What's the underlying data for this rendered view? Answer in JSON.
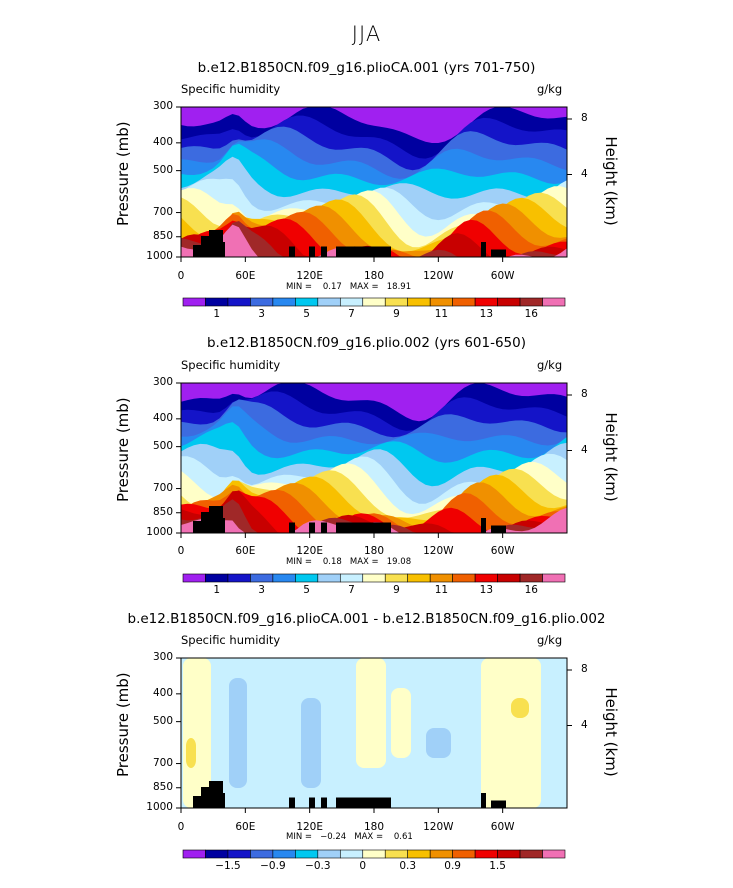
{
  "page_title": "JJA",
  "chart_data": [
    {
      "type": "contour",
      "title": "b.e12.B1850CN.f09_g16.plioCA.001 (yrs 701-750)",
      "subtitle_left": "Specific humidity",
      "subtitle_right": "g/kg",
      "ylabel": "Pressure (mb)",
      "ylabel_right": "Height (km)",
      "yticks": [
        "300",
        "400",
        "500",
        "700",
        "850",
        "1000"
      ],
      "yticks_right": [
        "8",
        "4"
      ],
      "xticks": [
        "0",
        "60E",
        "120E",
        "180",
        "120W",
        "60W"
      ],
      "ylim": [
        1000,
        300
      ],
      "stats": "MIN =    0.17   MAX =   18.91",
      "colorbar_labels": [
        "1",
        "3",
        "5",
        "7",
        "9",
        "11",
        "13",
        "16"
      ],
      "colorbar_colors": [
        "#a020f0",
        "#0000a0",
        "#1414c8",
        "#3c6be0",
        "#2888f0",
        "#00c8f0",
        "#a0d0f8",
        "#c8f0ff",
        "#ffffc8",
        "#f8e050",
        "#f8c000",
        "#f09000",
        "#f06000",
        "#f00000",
        "#c80000",
        "#a02828",
        "#f070b4"
      ]
    },
    {
      "type": "contour",
      "title": "b.e12.B1850CN.f09_g16.plio.002 (yrs 601-650)",
      "subtitle_left": "Specific humidity",
      "subtitle_right": "g/kg",
      "ylabel": "Pressure (mb)",
      "ylabel_right": "Height (km)",
      "yticks": [
        "300",
        "400",
        "500",
        "700",
        "850",
        "1000"
      ],
      "yticks_right": [
        "8",
        "4"
      ],
      "xticks": [
        "0",
        "60E",
        "120E",
        "180",
        "120W",
        "60W"
      ],
      "ylim": [
        1000,
        300
      ],
      "stats": "MIN =    0.18   MAX =   19.08",
      "colorbar_labels": [
        "1",
        "3",
        "5",
        "7",
        "9",
        "11",
        "13",
        "16"
      ],
      "colorbar_colors": [
        "#a020f0",
        "#0000a0",
        "#1414c8",
        "#3c6be0",
        "#2888f0",
        "#00c8f0",
        "#a0d0f8",
        "#c8f0ff",
        "#ffffc8",
        "#f8e050",
        "#f8c000",
        "#f09000",
        "#f06000",
        "#f00000",
        "#c80000",
        "#a02828",
        "#f070b4"
      ]
    },
    {
      "type": "contour",
      "title": "b.e12.B1850CN.f09_g16.plioCA.001 - b.e12.B1850CN.f09_g16.plio.002",
      "subtitle_left": "Specific humidity",
      "subtitle_right": "g/kg",
      "ylabel": "Pressure (mb)",
      "ylabel_right": "Height (km)",
      "yticks": [
        "300",
        "400",
        "500",
        "700",
        "850",
        "1000"
      ],
      "yticks_right": [
        "8",
        "4"
      ],
      "xticks": [
        "0",
        "60E",
        "120E",
        "180",
        "120W",
        "60W"
      ],
      "ylim": [
        1000,
        300
      ],
      "stats": "MIN =   −0.24   MAX =    0.61",
      "colorbar_labels": [
        "−1.5",
        "−0.9",
        "−0.3",
        "0",
        "0.3",
        "0.9",
        "1.5"
      ],
      "colorbar_colors": [
        "#a020f0",
        "#0000a0",
        "#1414c8",
        "#3c6be0",
        "#2888f0",
        "#00c8f0",
        "#a0d0f8",
        "#c8f0ff",
        "#ffffc8",
        "#f8e050",
        "#f8c000",
        "#f09000",
        "#f06000",
        "#f00000",
        "#c80000",
        "#a02828",
        "#f070b4"
      ]
    }
  ]
}
